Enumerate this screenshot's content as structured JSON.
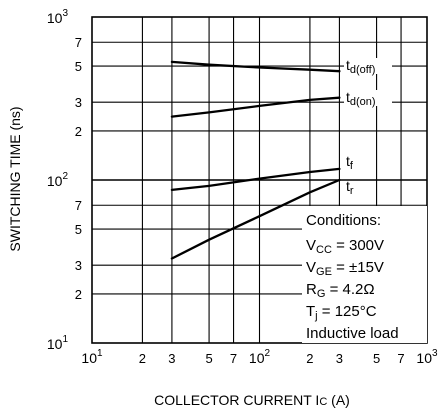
{
  "chart_data": {
    "type": "line",
    "xlabel": "COLLECTOR CURRENT  I",
    "xlabel_sub": "C",
    "xlabel_unit": " (A)",
    "ylabel": "SWITCHING TIME (ns)",
    "x_scale": "log",
    "y_scale": "log",
    "xlim": [
      10,
      1000
    ],
    "ylim": [
      10,
      1000
    ],
    "grid": true,
    "x_ticks": [
      {
        "v": 10,
        "base": "10",
        "exp": "1"
      },
      {
        "v": 20,
        "label": "2"
      },
      {
        "v": 30,
        "label": "3"
      },
      {
        "v": 50,
        "label": "5"
      },
      {
        "v": 70,
        "label": "7"
      },
      {
        "v": 100,
        "base": "10",
        "exp": "2"
      },
      {
        "v": 200,
        "label": "2"
      },
      {
        "v": 300,
        "label": "3"
      },
      {
        "v": 500,
        "label": "5"
      },
      {
        "v": 700,
        "label": "7"
      },
      {
        "v": 1000,
        "base": "10",
        "exp": "3"
      }
    ],
    "y_ticks": [
      {
        "v": 10,
        "base": "10",
        "exp": "1"
      },
      {
        "v": 20,
        "label": "2"
      },
      {
        "v": 30,
        "label": "3"
      },
      {
        "v": 50,
        "label": "5"
      },
      {
        "v": 70,
        "label": "7"
      },
      {
        "v": 100,
        "base": "10",
        "exp": "2"
      },
      {
        "v": 200,
        "label": "2"
      },
      {
        "v": 300,
        "label": "3"
      },
      {
        "v": 500,
        "label": "5"
      },
      {
        "v": 700,
        "label": "7"
      },
      {
        "v": 1000,
        "base": "10",
        "exp": "3"
      }
    ],
    "series": [
      {
        "name": "t",
        "sub": "d(off)",
        "x": [
          30,
          50,
          100,
          200,
          300
        ],
        "y": [
          530,
          510,
          490,
          475,
          465
        ]
      },
      {
        "name": "t",
        "sub": "d(on)",
        "x": [
          30,
          50,
          100,
          200,
          300
        ],
        "y": [
          245,
          260,
          285,
          310,
          320
        ]
      },
      {
        "name": "t",
        "sub": "f",
        "x": [
          30,
          50,
          100,
          200,
          300
        ],
        "y": [
          87,
          92,
          102,
          112,
          117
        ]
      },
      {
        "name": "t",
        "sub": "r",
        "x": [
          30,
          50,
          100,
          200,
          300
        ],
        "y": [
          33,
          43,
          60,
          84,
          100
        ]
      }
    ],
    "conditions": {
      "title": "Conditions:",
      "lines": [
        {
          "pre": "V",
          "sub": "CC",
          "post": " = 300V"
        },
        {
          "pre": "V",
          "sub": "GE",
          "post": " = ±15V"
        },
        {
          "pre": "R",
          "sub": "G",
          "post": " = 4.2Ω"
        },
        {
          "pre": "T",
          "sub": "j",
          "post": " = 125°C"
        },
        {
          "pre": "Inductive load",
          "sub": "",
          "post": ""
        }
      ]
    }
  }
}
